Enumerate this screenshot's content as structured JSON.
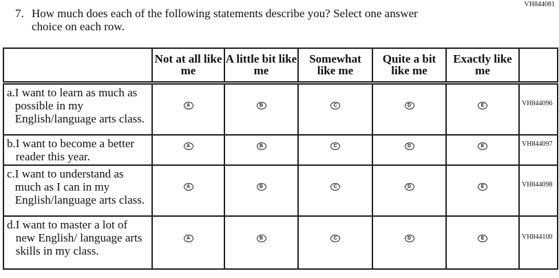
{
  "question_id": "VH844081",
  "question": {
    "number": "7.",
    "line1": "How much does each of the following statements describe you? Select one answer",
    "line2": "choice on each row."
  },
  "columns": [
    "Not at all like me",
    "A little bit like me",
    "Somewhat like me",
    "Quite a bit like me",
    "Exactly like me"
  ],
  "options": [
    "A",
    "B",
    "C",
    "D",
    "E"
  ],
  "rows": [
    {
      "letter": "a.",
      "text": "I want to learn as much as possible in my English/language arts class.",
      "id": "VH844096"
    },
    {
      "letter": "b.",
      "text": "I want to become a better reader this year.",
      "id": "VH844097"
    },
    {
      "letter": "c.",
      "text": "I want to understand as much as I can in my English/language arts class.",
      "id": "VH844098"
    },
    {
      "letter": "d.",
      "text": "I want to master a lot of new English/ language arts skills in my class.",
      "id": "VH844100"
    }
  ]
}
